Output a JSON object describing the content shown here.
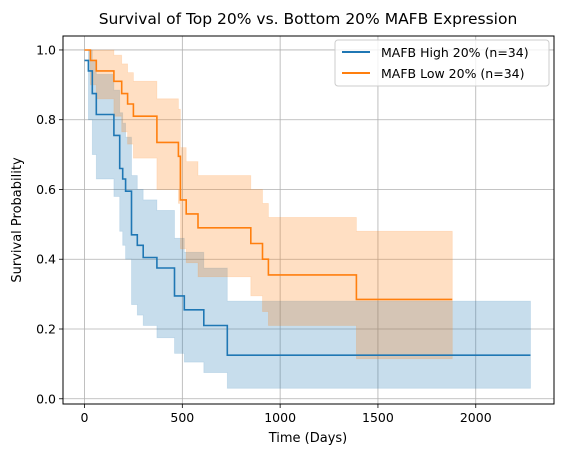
{
  "chart_data": {
    "type": "line",
    "subtype": "kaplan-meier step",
    "title": "Survival of Top 20% vs. Bottom 20% MAFB Expression",
    "xlabel": "Time (Days)",
    "ylabel": "Survival Probability",
    "xlim": [
      -110,
      2400
    ],
    "ylim": [
      -0.015,
      1.04
    ],
    "xticks": [
      0,
      500,
      1000,
      1500,
      2000
    ],
    "yticks": [
      0.0,
      0.2,
      0.4,
      0.6,
      0.8,
      1.0
    ],
    "xtick_labels": [
      "0",
      "500",
      "1000",
      "1500",
      "2000"
    ],
    "ytick_labels": [
      "0.0",
      "0.2",
      "0.4",
      "0.6",
      "0.8",
      "1.0"
    ],
    "grid": true,
    "legend_position": "top-right",
    "series": [
      {
        "name": "MAFB High 20% (n=34)",
        "color": "#1f77b4",
        "ci_alpha": 0.25,
        "x": [
          0,
          20,
          40,
          60,
          150,
          180,
          195,
          210,
          240,
          270,
          300,
          370,
          460,
          510,
          610,
          730,
          2280
        ],
        "y": [
          0.97,
          0.94,
          0.875,
          0.815,
          0.755,
          0.66,
          0.63,
          0.595,
          0.47,
          0.44,
          0.405,
          0.375,
          0.295,
          0.255,
          0.21,
          0.125,
          0.125
        ],
        "ci_lower": [
          0.97,
          0.8,
          0.7,
          0.63,
          0.58,
          0.48,
          0.44,
          0.4,
          0.27,
          0.24,
          0.21,
          0.175,
          0.13,
          0.105,
          0.075,
          0.03,
          0.03
        ],
        "ci_upper": [
          0.97,
          1.0,
          0.97,
          0.93,
          0.885,
          0.82,
          0.79,
          0.75,
          0.64,
          0.6,
          0.57,
          0.54,
          0.46,
          0.42,
          0.375,
          0.28,
          0.28
        ]
      },
      {
        "name": "MAFB Low 20% (n=34)",
        "color": "#ff7f0e",
        "ci_alpha": 0.25,
        "x": [
          0,
          30,
          60,
          150,
          190,
          220,
          250,
          370,
          480,
          490,
          520,
          580,
          850,
          910,
          940,
          1390,
          1880
        ],
        "y": [
          1.0,
          0.97,
          0.94,
          0.91,
          0.875,
          0.845,
          0.81,
          0.735,
          0.695,
          0.57,
          0.53,
          0.49,
          0.445,
          0.4,
          0.355,
          0.285,
          0.285
        ],
        "ci_lower": [
          1.0,
          0.9,
          0.86,
          0.81,
          0.765,
          0.73,
          0.69,
          0.6,
          0.56,
          0.43,
          0.39,
          0.35,
          0.295,
          0.25,
          0.21,
          0.115,
          0.115
        ],
        "ci_upper": [
          1.0,
          1.0,
          1.0,
          0.985,
          0.96,
          0.935,
          0.91,
          0.86,
          0.83,
          0.72,
          0.68,
          0.64,
          0.6,
          0.56,
          0.52,
          0.48,
          0.48
        ]
      }
    ]
  }
}
